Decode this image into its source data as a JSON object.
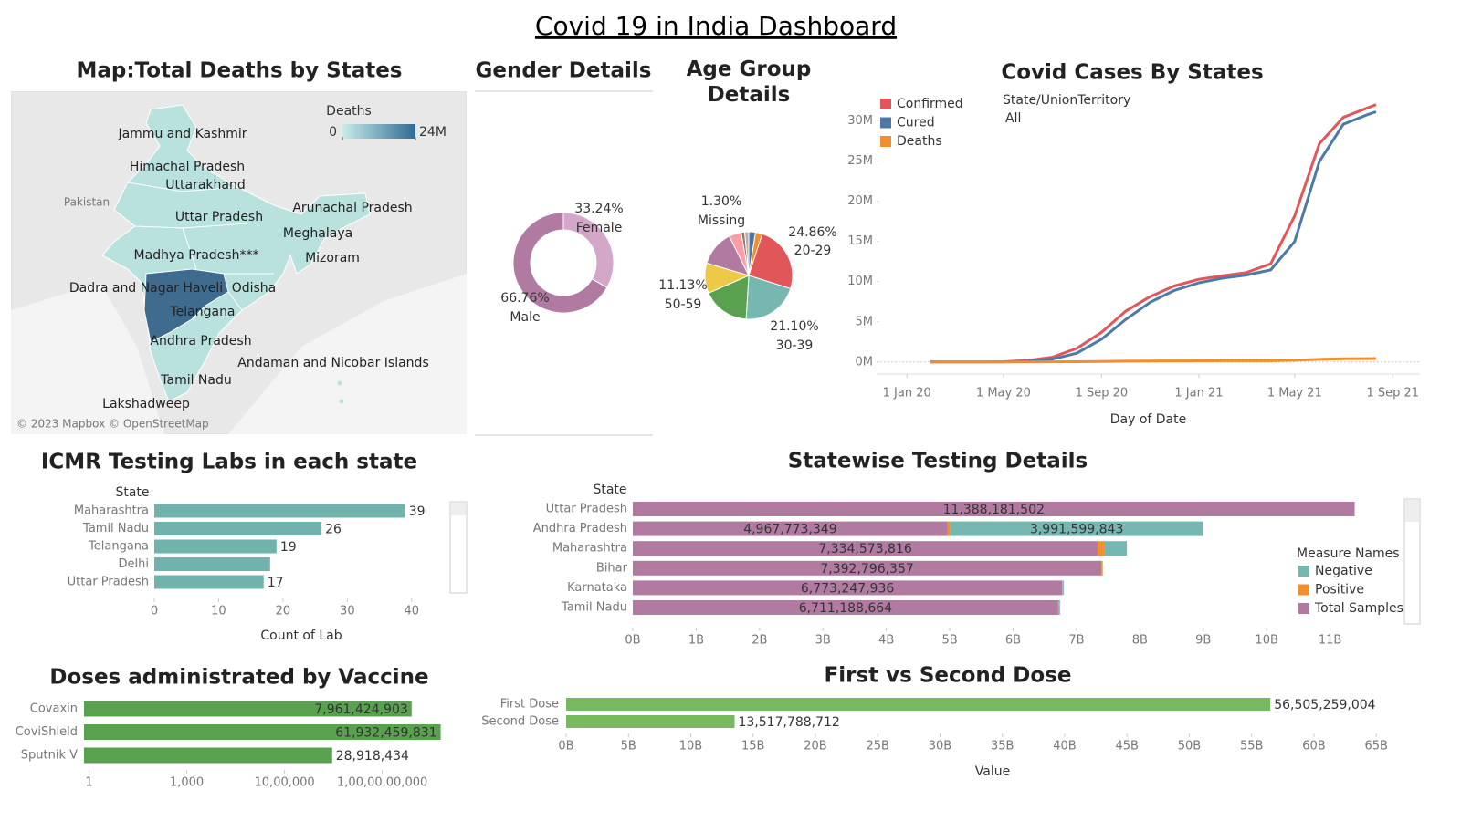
{
  "title": "Covid 19 in India Dashboard",
  "map": {
    "title": "Map:Total Deaths by States",
    "legend_title": "Deaths",
    "legend_ticks": [
      0,
      {
        "value": 24000000,
        "label": "24M"
      }
    ],
    "labels": [
      "Jammu and Kashmir",
      "Himachal Pradesh",
      "Uttarakhand",
      "Uttar Pradesh",
      "Arunachal Pradesh",
      "Meghalaya",
      "Madhya Pradesh***",
      "Mizoram",
      "Dadra and Nagar Haveli",
      "Odisha",
      "Telangana",
      "Andhra Pradesh",
      "Andaman and Nicobar Islands",
      "Tamil Nadu",
      "Lakshadweep"
    ],
    "country_labels": [
      "Pakistan"
    ],
    "attribution": "© 2023 Mapbox © OpenStreetMap"
  },
  "chart_data": [
    {
      "type": "pie",
      "title": "Gender Details",
      "categories": [
        "Female",
        "Male"
      ],
      "values": [
        33.24,
        66.76
      ],
      "value_labels": [
        "33.24%",
        "66.76%"
      ],
      "colors": [
        "#d4a6c8",
        "#b07aa1"
      ],
      "donut": true
    },
    {
      "type": "pie",
      "title": "Age Group Details",
      "categories": [
        null,
        null,
        "20-29",
        "30-39",
        null,
        "50-59",
        null,
        null,
        "Missing",
        null
      ],
      "values": [
        2.5,
        2.5,
        24.86,
        21.1,
        17.5,
        11.13,
        13.11,
        4.5,
        1.3,
        1.5
      ],
      "value_labels": [
        null,
        null,
        "24.86%",
        "21.10%",
        null,
        "11.13%",
        null,
        null,
        "1.30%",
        null
      ],
      "colors": [
        "#4e79a7",
        "#f28e2b",
        "#e15759",
        "#76b7b2",
        "#59a14f",
        "#edc948",
        "#b07aa1",
        "#ff9da7",
        "#9c755f",
        "#bab0ac"
      ],
      "donut": false
    },
    {
      "type": "line",
      "title": "Covid Cases By States",
      "filter_title": "State/UnionTerritory",
      "filter_value": "All",
      "xlabel": "Day of Date",
      "legend": "top-left",
      "x": [
        "2020-01-30",
        "2020-03-01",
        "2020-04-01",
        "2020-05-01",
        "2020-06-01",
        "2020-07-01",
        "2020-08-01",
        "2020-09-01",
        "2020-10-01",
        "2020-11-01",
        "2020-12-01",
        "2021-01-01",
        "2021-02-01",
        "2021-03-01",
        "2021-04-01",
        "2021-05-01",
        "2021-06-01",
        "2021-07-01",
        "2021-08-01",
        "2021-08-11"
      ],
      "series": [
        {
          "name": "Confirmed",
          "color": "#e15759",
          "values": [
            1,
            3,
            1998,
            35043,
            190535,
            585493,
            1695988,
            3691166,
            6312584,
            8137119,
            9462809,
            10286709,
            10757610,
            11112056,
            12221665,
            18164969,
            27175044,
            30458251,
            31655824,
            32036511
          ]
        },
        {
          "name": "Cured",
          "color": "#4e79a7",
          "values": [
            1,
            3,
            144,
            8888,
            91819,
            347979,
            1094374,
            2839882,
            5273201,
            7432829,
            8889585,
            9860280,
            10462631,
            10808285,
            11455436,
            14992271,
            24947629,
            29588472,
            30816628,
            31147238
          ]
        },
        {
          "name": "Deaths",
          "color": "#f28e2b",
          "values": [
            0,
            0,
            58,
            1147,
            5394,
            17400,
            35747,
            65288,
            98678,
            121641,
            137621,
            148738,
            154486,
            157051,
            162468,
            211853,
            324351,
            397637,
            424351,
            429179
          ]
        }
      ],
      "xlim": [
        "2019-11-24",
        "2021-10-05"
      ],
      "xticks": [
        {
          "value": "2020-01-01",
          "label": "1 Jan 20"
        },
        {
          "value": "2020-05-01",
          "label": "1 May 20"
        },
        {
          "value": "2020-09-01",
          "label": "1 Sep 20"
        },
        {
          "value": "2021-01-01",
          "label": "1 Jan 21"
        },
        {
          "value": "2021-05-01",
          "label": "1 May 21"
        },
        {
          "value": "2021-09-01",
          "label": "1 Sep 21"
        }
      ],
      "ylim": [
        -1500000,
        32000000
      ],
      "yticks": [
        {
          "value": 0,
          "label": "0M"
        },
        {
          "value": 5000000,
          "label": "5M"
        },
        {
          "value": 10000000,
          "label": "10M"
        },
        {
          "value": 15000000,
          "label": "15M"
        },
        {
          "value": 20000000,
          "label": "20M"
        },
        {
          "value": 25000000,
          "label": "25M"
        },
        {
          "value": 30000000,
          "label": "30M"
        }
      ]
    },
    {
      "type": "hbar",
      "title": "ICMR Testing Labs in each state",
      "category_label": "State",
      "xlabel": "Count of Lab",
      "categories": [
        "Maharashtra",
        "Tamil Nadu",
        "Telangana",
        "Delhi",
        "Uttar Pradesh"
      ],
      "values": [
        39,
        26,
        19,
        18,
        17
      ],
      "value_labels": [
        "39",
        "26",
        "19",
        null,
        "17"
      ],
      "color": "#6fb3ac",
      "xlim": [
        0,
        45
      ],
      "xticks": [
        0,
        10,
        20,
        30,
        40
      ]
    },
    {
      "type": "stacked-hbar",
      "title": "Statewise Testing Details",
      "category_label": "State",
      "legend_title": "Measure Names",
      "categories": [
        "Uttar Pradesh",
        "Andhra Pradesh",
        "Maharashtra",
        "Bihar",
        "Karnataka",
        "Tamil Nadu"
      ],
      "series": [
        {
          "name": "Negative",
          "color": "#76b7b2",
          "values": [
            0,
            3991599843,
            360000000,
            10000000,
            15000000,
            20000000
          ],
          "value_labels": [
            null,
            "3,991,599,843",
            null,
            null,
            null,
            null
          ]
        },
        {
          "name": "Positive",
          "color": "#f28e2b",
          "values": [
            0,
            40000000,
            100000000,
            12000000,
            10000000,
            8000000
          ]
        },
        {
          "name": "Total Samples",
          "color": "#b07aa1",
          "values": [
            11388181502,
            4967773349,
            7334573816,
            7392796357,
            6773247936,
            6711188664
          ],
          "value_labels": [
            "11,388,181,502",
            "4,967,773,349",
            "7,334,573,816",
            "7,392,796,357",
            "6,773,247,936",
            "6,711,188,664"
          ]
        }
      ],
      "xlim": [
        0,
        12000000000
      ],
      "xticks": [
        {
          "value": 0,
          "label": "0B"
        },
        {
          "value": 1000000000,
          "label": "1B"
        },
        {
          "value": 2000000000,
          "label": "2B"
        },
        {
          "value": 3000000000,
          "label": "3B"
        },
        {
          "value": 4000000000,
          "label": "4B"
        },
        {
          "value": 5000000000,
          "label": "5B"
        },
        {
          "value": 6000000000,
          "label": "6B"
        },
        {
          "value": 7000000000,
          "label": "7B"
        },
        {
          "value": 8000000000,
          "label": "8B"
        },
        {
          "value": 9000000000,
          "label": "9B"
        },
        {
          "value": 10000000000,
          "label": "10B"
        },
        {
          "value": 11000000000,
          "label": "11B"
        }
      ]
    },
    {
      "type": "hbar",
      "title": "Doses administrated by Vaccine",
      "categories": [
        "Covaxin",
        "CoviShield",
        "Sputnik V"
      ],
      "values": [
        7961424903,
        61932459831,
        28918434
      ],
      "value_labels": [
        "7,961,424,903",
        "61,932,459,831",
        "28,918,434"
      ],
      "color": "#59a14f",
      "log_x": true,
      "xlim": [
        0.7,
        100000000000
      ],
      "xticks": [
        1,
        {
          "value": 1000,
          "label": "1,000"
        },
        {
          "value": 1000000,
          "label": "10,00,000"
        },
        {
          "value": 1000000000,
          "label": "1,00,00,00,000"
        }
      ]
    },
    {
      "type": "hbar",
      "title": "First vs Second Dose",
      "xlabel": "Value",
      "categories": [
        "First Dose",
        "Second Dose"
      ],
      "values": [
        56505259004,
        13517788712
      ],
      "value_labels": [
        "56,505,259,004",
        "13,517,788,712"
      ],
      "color": "#76b95e",
      "xlim": [
        0,
        65500000000
      ],
      "xticks": [
        {
          "value": 0,
          "label": "0B"
        },
        {
          "value": 5000000000,
          "label": "5B"
        },
        {
          "value": 10000000000,
          "label": "10B"
        },
        {
          "value": 15000000000,
          "label": "15B"
        },
        {
          "value": 20000000000,
          "label": "20B"
        },
        {
          "value": 25000000000,
          "label": "25B"
        },
        {
          "value": 30000000000,
          "label": "30B"
        },
        {
          "value": 35000000000,
          "label": "35B"
        },
        {
          "value": 40000000000,
          "label": "40B"
        },
        {
          "value": 45000000000,
          "label": "45B"
        },
        {
          "value": 50000000000,
          "label": "50B"
        },
        {
          "value": 55000000000,
          "label": "55B"
        },
        {
          "value": 60000000000,
          "label": "60B"
        },
        {
          "value": 65000000000,
          "label": "65B"
        }
      ]
    }
  ]
}
